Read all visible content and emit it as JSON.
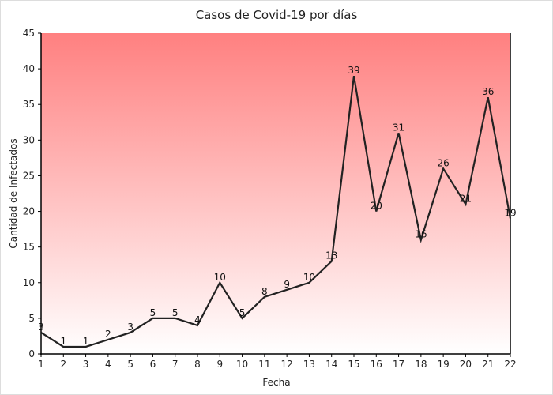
{
  "chart_data": {
    "type": "line",
    "title": "Casos de Covid-19 por días",
    "xlabel": "Fecha",
    "ylabel": "Cantidad de Infectados",
    "x": [
      1,
      2,
      3,
      4,
      5,
      6,
      7,
      8,
      9,
      10,
      11,
      12,
      13,
      14,
      15,
      16,
      17,
      18,
      19,
      20,
      21,
      22
    ],
    "values": [
      3,
      1,
      1,
      2,
      3,
      5,
      5,
      4,
      10,
      5,
      8,
      9,
      10,
      13,
      39,
      20,
      31,
      16,
      26,
      21,
      36,
      19
    ],
    "ylim": [
      0,
      45
    ],
    "yticks": [
      0,
      5,
      10,
      15,
      20,
      25,
      30,
      35,
      40,
      45
    ],
    "xlim": [
      1,
      22
    ],
    "grid": false,
    "legend": "none",
    "data_labels": true,
    "colors": {
      "line": "#222222",
      "background_top": "#ff8080",
      "background_bottom": "#ffffff"
    }
  }
}
